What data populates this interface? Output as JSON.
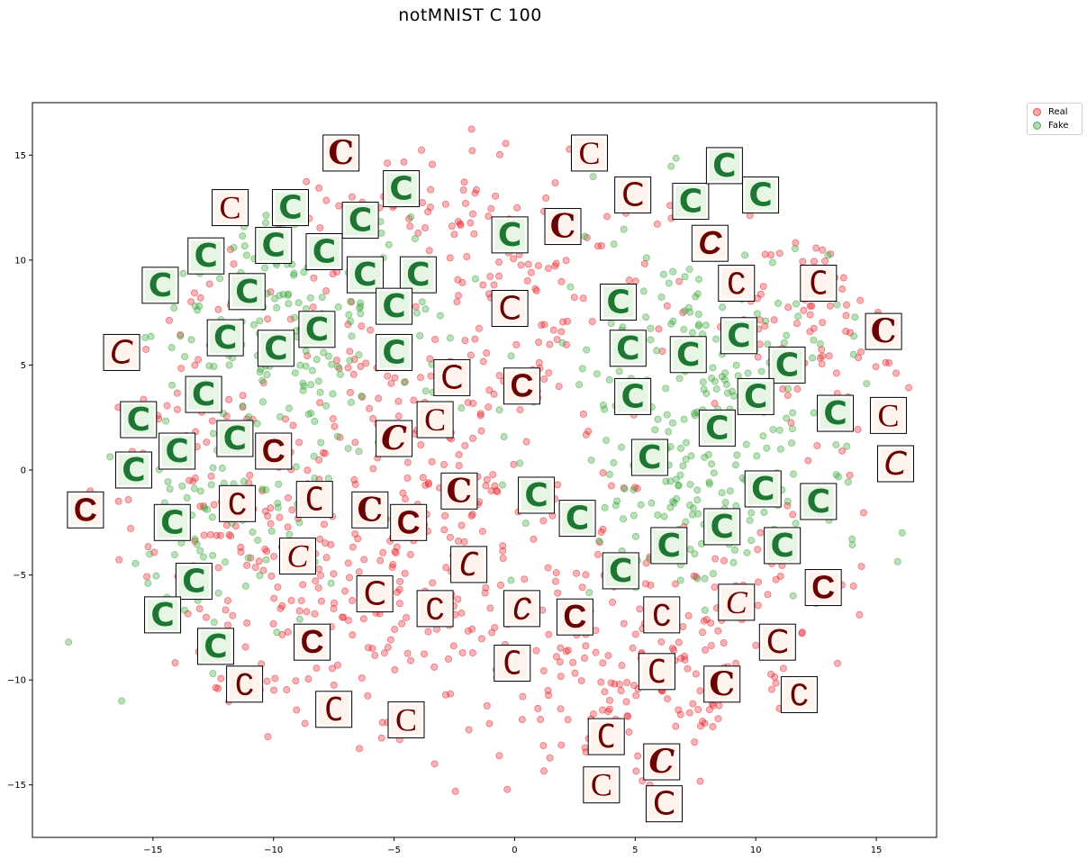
{
  "colors": {
    "real": "#e8252b",
    "fake": "#3aa63a",
    "real_glyph": "#6b0000",
    "real_bg": "#fff3ee",
    "fake_glyph": "#0c6a22",
    "fake_bg": "#e7f5e4"
  },
  "chart_data": {
    "type": "scatter",
    "title": "notMNIST C 100",
    "xlabel": "",
    "ylabel": "",
    "xlim": [
      -20,
      17.5
    ],
    "ylim": [
      -17.5,
      17.5
    ],
    "x_ticks": [
      -15,
      -10,
      -5,
      0,
      5,
      10,
      15
    ],
    "x_tick_labels": [
      "−15",
      "−10",
      "−5",
      "0",
      "5",
      "10",
      "15"
    ],
    "y_ticks": [
      15,
      10,
      5,
      0,
      -5,
      -10,
      -15
    ],
    "y_tick_labels": [
      "15",
      "10",
      "5",
      "0",
      "−5",
      "−10",
      "−15"
    ],
    "grid": false,
    "legend_position": "outside-top-right",
    "series": [
      {
        "name": "Real",
        "color": "#e8252b",
        "alpha": 0.35,
        "region": "red"
      },
      {
        "name": "Fake",
        "color": "#3aa63a",
        "alpha": 0.35,
        "region": "green"
      }
    ],
    "thumbnails": [
      {
        "x": -7.2,
        "y": 15.1,
        "kind": "real"
      },
      {
        "x": -11.8,
        "y": 12.5,
        "kind": "real"
      },
      {
        "x": -16.3,
        "y": 5.6,
        "kind": "real"
      },
      {
        "x": -17.8,
        "y": -1.9,
        "kind": "real"
      },
      {
        "x": -11.5,
        "y": -1.6,
        "kind": "real"
      },
      {
        "x": -8.3,
        "y": -1.4,
        "kind": "real"
      },
      {
        "x": -6.0,
        "y": -1.9,
        "kind": "real"
      },
      {
        "x": -9.0,
        "y": -4.1,
        "kind": "real"
      },
      {
        "x": -5.8,
        "y": -5.9,
        "kind": "real"
      },
      {
        "x": -8.4,
        "y": -8.2,
        "kind": "real"
      },
      {
        "x": -11.2,
        "y": -10.2,
        "kind": "real"
      },
      {
        "x": -7.5,
        "y": -11.4,
        "kind": "real"
      },
      {
        "x": -5.0,
        "y": 1.5,
        "kind": "real"
      },
      {
        "x": -3.3,
        "y": 2.4,
        "kind": "real"
      },
      {
        "x": -2.6,
        "y": 4.4,
        "kind": "real"
      },
      {
        "x": -4.4,
        "y": -2.5,
        "kind": "real"
      },
      {
        "x": -3.3,
        "y": -6.6,
        "kind": "real"
      },
      {
        "x": -1.9,
        "y": -4.5,
        "kind": "real"
      },
      {
        "x": -2.3,
        "y": -1.0,
        "kind": "real"
      },
      {
        "x": -4.5,
        "y": -11.9,
        "kind": "real"
      },
      {
        "x": -0.2,
        "y": 7.7,
        "kind": "real"
      },
      {
        "x": 0.3,
        "y": 4.0,
        "kind": "real"
      },
      {
        "x": 0.3,
        "y": -6.6,
        "kind": "real"
      },
      {
        "x": -0.1,
        "y": -9.2,
        "kind": "real"
      },
      {
        "x": 2.0,
        "y": 11.6,
        "kind": "real"
      },
      {
        "x": 3.1,
        "y": 15.1,
        "kind": "real"
      },
      {
        "x": 4.9,
        "y": 13.1,
        "kind": "real"
      },
      {
        "x": 8.1,
        "y": 10.8,
        "kind": "real"
      },
      {
        "x": 9.2,
        "y": 8.9,
        "kind": "real"
      },
      {
        "x": 12.6,
        "y": 8.9,
        "kind": "real"
      },
      {
        "x": 15.3,
        "y": 6.6,
        "kind": "real"
      },
      {
        "x": 15.5,
        "y": 2.6,
        "kind": "real"
      },
      {
        "x": 15.8,
        "y": 0.3,
        "kind": "real"
      },
      {
        "x": 2.5,
        "y": -7.0,
        "kind": "real"
      },
      {
        "x": 6.1,
        "y": -6.9,
        "kind": "real"
      },
      {
        "x": 5.9,
        "y": -9.6,
        "kind": "real"
      },
      {
        "x": 8.6,
        "y": -10.2,
        "kind": "real"
      },
      {
        "x": 9.2,
        "y": -6.3,
        "kind": "real"
      },
      {
        "x": 10.9,
        "y": -8.2,
        "kind": "real"
      },
      {
        "x": 12.8,
        "y": -5.6,
        "kind": "real"
      },
      {
        "x": 11.8,
        "y": -10.7,
        "kind": "real"
      },
      {
        "x": 3.8,
        "y": -12.7,
        "kind": "real"
      },
      {
        "x": 6.1,
        "y": -13.9,
        "kind": "real"
      },
      {
        "x": 3.6,
        "y": -15.0,
        "kind": "real"
      },
      {
        "x": 6.2,
        "y": -15.9,
        "kind": "real"
      },
      {
        "x": -10.0,
        "y": 0.9,
        "kind": "real"
      },
      {
        "x": -4.7,
        "y": 13.4,
        "kind": "fake"
      },
      {
        "x": -9.3,
        "y": 12.5,
        "kind": "fake"
      },
      {
        "x": -6.4,
        "y": 11.9,
        "kind": "fake"
      },
      {
        "x": -10.0,
        "y": 10.7,
        "kind": "fake"
      },
      {
        "x": -7.9,
        "y": 10.4,
        "kind": "fake"
      },
      {
        "x": -12.8,
        "y": 10.2,
        "kind": "fake"
      },
      {
        "x": -6.2,
        "y": 9.3,
        "kind": "fake"
      },
      {
        "x": -4.0,
        "y": 9.3,
        "kind": "fake"
      },
      {
        "x": -14.7,
        "y": 8.8,
        "kind": "fake"
      },
      {
        "x": -11.1,
        "y": 8.5,
        "kind": "fake"
      },
      {
        "x": -5.0,
        "y": 7.8,
        "kind": "fake"
      },
      {
        "x": -8.2,
        "y": 6.7,
        "kind": "fake"
      },
      {
        "x": -12.0,
        "y": 6.3,
        "kind": "fake"
      },
      {
        "x": -9.9,
        "y": 5.8,
        "kind": "fake"
      },
      {
        "x": -5.0,
        "y": 5.6,
        "kind": "fake"
      },
      {
        "x": -12.9,
        "y": 3.6,
        "kind": "fake"
      },
      {
        "x": -15.6,
        "y": 2.4,
        "kind": "fake"
      },
      {
        "x": -11.6,
        "y": 1.5,
        "kind": "fake"
      },
      {
        "x": -14.0,
        "y": 0.9,
        "kind": "fake"
      },
      {
        "x": -15.8,
        "y": 0.0,
        "kind": "fake"
      },
      {
        "x": -14.2,
        "y": -2.5,
        "kind": "fake"
      },
      {
        "x": -13.3,
        "y": -5.3,
        "kind": "fake"
      },
      {
        "x": -14.6,
        "y": -6.9,
        "kind": "fake"
      },
      {
        "x": -12.4,
        "y": -8.4,
        "kind": "fake"
      },
      {
        "x": -0.2,
        "y": 11.2,
        "kind": "fake"
      },
      {
        "x": 7.3,
        "y": 12.8,
        "kind": "fake"
      },
      {
        "x": 8.7,
        "y": 14.5,
        "kind": "fake"
      },
      {
        "x": 10.2,
        "y": 13.1,
        "kind": "fake"
      },
      {
        "x": 4.3,
        "y": 8.0,
        "kind": "fake"
      },
      {
        "x": 4.7,
        "y": 5.8,
        "kind": "fake"
      },
      {
        "x": 7.2,
        "y": 5.5,
        "kind": "fake"
      },
      {
        "x": 9.3,
        "y": 6.4,
        "kind": "fake"
      },
      {
        "x": 11.3,
        "y": 5.0,
        "kind": "fake"
      },
      {
        "x": 4.9,
        "y": 3.5,
        "kind": "fake"
      },
      {
        "x": 10.0,
        "y": 3.5,
        "kind": "fake"
      },
      {
        "x": 13.3,
        "y": 2.7,
        "kind": "fake"
      },
      {
        "x": 8.4,
        "y": 2.0,
        "kind": "fake"
      },
      {
        "x": 5.6,
        "y": 0.6,
        "kind": "fake"
      },
      {
        "x": 10.3,
        "y": -0.9,
        "kind": "fake"
      },
      {
        "x": 12.6,
        "y": -1.5,
        "kind": "fake"
      },
      {
        "x": 0.9,
        "y": -1.2,
        "kind": "fake"
      },
      {
        "x": 2.6,
        "y": -2.3,
        "kind": "fake"
      },
      {
        "x": 8.6,
        "y": -2.7,
        "kind": "fake"
      },
      {
        "x": 6.4,
        "y": -3.6,
        "kind": "fake"
      },
      {
        "x": 11.1,
        "y": -3.6,
        "kind": "fake"
      },
      {
        "x": 4.4,
        "y": -4.8,
        "kind": "fake"
      }
    ]
  }
}
